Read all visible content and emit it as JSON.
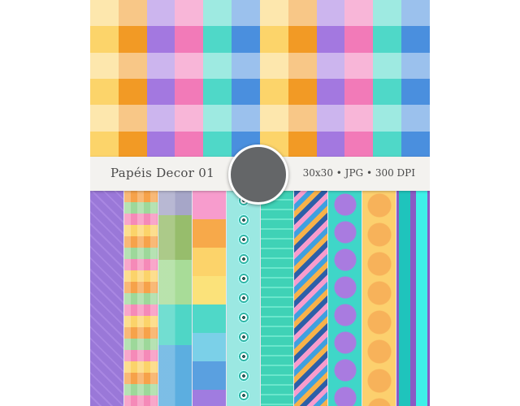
{
  "product": {
    "title": "Papéis Decor 01",
    "specs": "30x30 • JPG • 300 DPI"
  },
  "colors": {
    "gingham": [
      "#fcd46a",
      "#f29a25",
      "#a378e0",
      "#f27ab8",
      "#4fd8c8",
      "#4a8fde"
    ],
    "banner_bg": "#f3f2ef",
    "circle": "#646668"
  },
  "strips": [
    {
      "pattern": "purple-diamond"
    },
    {
      "pattern": "rainbow-plaid"
    },
    {
      "pattern": "pastel-plaid"
    },
    {
      "pattern": "horizontal-stripes"
    },
    {
      "pattern": "teal-eye-dots"
    },
    {
      "pattern": "teal-bricks"
    },
    {
      "pattern": "diagonal-stripes"
    },
    {
      "pattern": "purple-circles-on-teal"
    },
    {
      "pattern": "orange-circles-on-yellow"
    },
    {
      "pattern": "teal-squares-on-purple"
    }
  ]
}
